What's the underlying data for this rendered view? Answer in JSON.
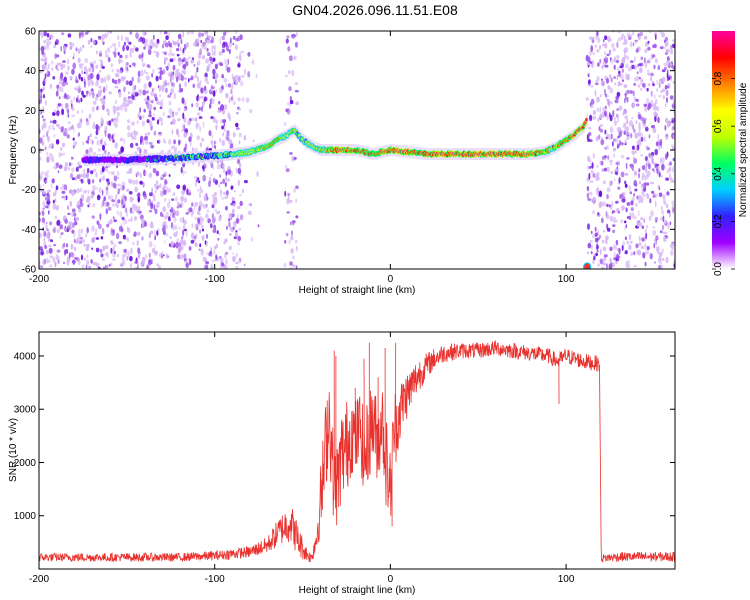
{
  "title": "GN04.2026.096.11.51.E08",
  "colors": {
    "line": "#e8302c",
    "background": "#ffffff",
    "spectrogram_sparse": "#8a2be2"
  },
  "chart_data": [
    {
      "type": "heatmap",
      "name": "spectrogram",
      "xlabel": "Height of straight line (km)",
      "ylabel": "Frequency (Hz)",
      "xlim": [
        -200,
        162
      ],
      "ylim": [
        -60,
        60
      ],
      "xticks": [
        -200,
        -100,
        0,
        100
      ],
      "yticks": [
        -60,
        -40,
        -20,
        0,
        20,
        40,
        60
      ],
      "colorbar": {
        "label": "Normalized spectral amplitude",
        "range": [
          0,
          1
        ],
        "ticks": [
          "0.0",
          "0.2",
          "0.4",
          "0.6",
          "0.8"
        ],
        "colormap": [
          "#ffffff",
          "#a000ff",
          "#3020ff",
          "#00d0ff",
          "#00ff60",
          "#c0ff00",
          "#ffff00",
          "#ff8000",
          "#ff0000",
          "#ff00a0"
        ]
      },
      "noise_regions_km": [
        [
          -200,
          -85
        ],
        [
          112,
          162
        ]
      ],
      "noise_strip_km": [
        -60,
        -53
      ],
      "trace": {
        "x": [
          -175,
          -150,
          -120,
          -100,
          -90,
          -80,
          -70,
          -65,
          -60,
          -55,
          -50,
          -45,
          -40,
          -30,
          -20,
          -10,
          -5,
          0,
          20,
          50,
          80,
          88,
          95,
          100,
          105,
          110,
          112
        ],
        "y": [
          -5,
          -5,
          -4,
          -3,
          -2,
          -1,
          2,
          5,
          7,
          10,
          5,
          2,
          0,
          0,
          0,
          -2,
          -1,
          0,
          -2,
          -2,
          -2,
          -1,
          2,
          5,
          8,
          12,
          16
        ],
        "amplitude": [
          0.25,
          0.3,
          0.45,
          0.5,
          0.6,
          0.65,
          0.7,
          0.75,
          0.6,
          0.65,
          0.55,
          0.6,
          0.65,
          0.9,
          0.9,
          0.8,
          0.85,
          0.95,
          0.95,
          0.95,
          0.9,
          0.75,
          0.8,
          0.85,
          0.9,
          0.95,
          0.95
        ]
      },
      "hotspot": {
        "x": 112,
        "y": -59
      }
    },
    {
      "type": "line",
      "name": "snr",
      "xlabel": "Height of straight line (km)",
      "ylabel": "SNR (10 * v/v)",
      "xlim": [
        -200,
        162
      ],
      "ylim": [
        0,
        4450
      ],
      "xticks": [
        -200,
        -100,
        0,
        100
      ],
      "yticks": [
        1000,
        2000,
        3000,
        4000
      ],
      "envelope": {
        "x": [
          -200,
          -120,
          -100,
          -80,
          -70,
          -62,
          -57,
          -52,
          -48,
          -45,
          -42,
          -38,
          -35,
          -32,
          -30,
          -28,
          -25,
          -22,
          -20,
          -17,
          -15,
          -12,
          -10,
          -7,
          -5,
          -2,
          0,
          2,
          5,
          8,
          10,
          15,
          20,
          25,
          30,
          40,
          50,
          60,
          70,
          80,
          90,
          95,
          100,
          110,
          119,
          120,
          130,
          162
        ],
        "y": [
          220,
          220,
          250,
          320,
          450,
          750,
          900,
          500,
          300,
          200,
          600,
          1800,
          3000,
          1500,
          1600,
          2100,
          2300,
          2600,
          2400,
          2700,
          2000,
          2500,
          2800,
          2300,
          2900,
          1900,
          1500,
          2600,
          2900,
          3200,
          3300,
          3600,
          3800,
          3950,
          4050,
          4100,
          4100,
          4150,
          4100,
          4050,
          4000,
          3900,
          4000,
          3900,
          3850,
          200,
          230,
          230
        ],
        "noise": [
          80,
          80,
          90,
          110,
          160,
          300,
          400,
          300,
          150,
          100,
          300,
          900,
          900,
          800,
          800,
          900,
          900,
          800,
          800,
          700,
          900,
          800,
          900,
          700,
          800,
          900,
          700,
          800,
          600,
          500,
          450,
          350,
          250,
          200,
          180,
          150,
          150,
          150,
          150,
          150,
          150,
          150,
          150,
          150,
          150,
          80,
          90,
          90
        ]
      },
      "spikes": [
        {
          "x": -32,
          "y": 4100
        },
        {
          "x": -31,
          "y": 4000
        },
        {
          "x": -20,
          "y": 3400
        },
        {
          "x": -15,
          "y": 3950
        },
        {
          "x": -12,
          "y": 4250
        },
        {
          "x": -7,
          "y": 3600
        },
        {
          "x": -3,
          "y": 4150
        },
        {
          "x": 3,
          "y": 4250
        },
        {
          "x": 1,
          "y": 800
        },
        {
          "x": 96,
          "y": 3100
        }
      ]
    }
  ]
}
